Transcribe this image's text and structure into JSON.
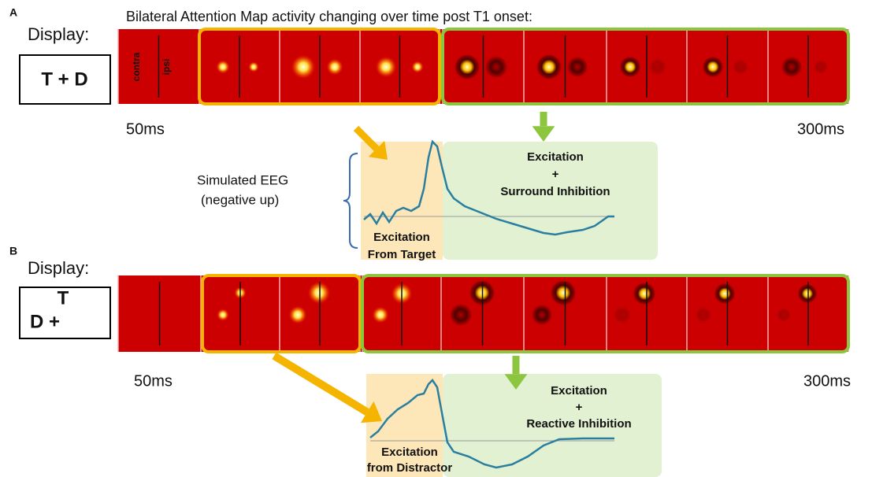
{
  "figure": {
    "panels": [
      {
        "label": "A",
        "display_label": "Display:",
        "display_lines": [
          "T + D"
        ],
        "title": "Bilateral Attention Map activity changing over time post T1 onset:",
        "strip_labels": [
          "contra",
          "ipsi"
        ],
        "start_time": "50ms",
        "end_time": "300ms",
        "eeg_label": [
          "Simulated EEG",
          "(negative up)"
        ],
        "early_annotation": [
          "Excitation",
          "From Target"
        ],
        "late_annotation": [
          "Excitation",
          "+",
          "Surround Inhibition"
        ]
      },
      {
        "label": "B",
        "display_label": "Display:",
        "display_lines": [
          "T",
          "D +"
        ],
        "start_time": "50ms",
        "end_time": "300ms",
        "early_annotation": [
          "Excitation",
          "from Distractor"
        ],
        "late_annotation": [
          "Excitation",
          "+",
          "Reactive Inhibition"
        ]
      }
    ]
  }
}
